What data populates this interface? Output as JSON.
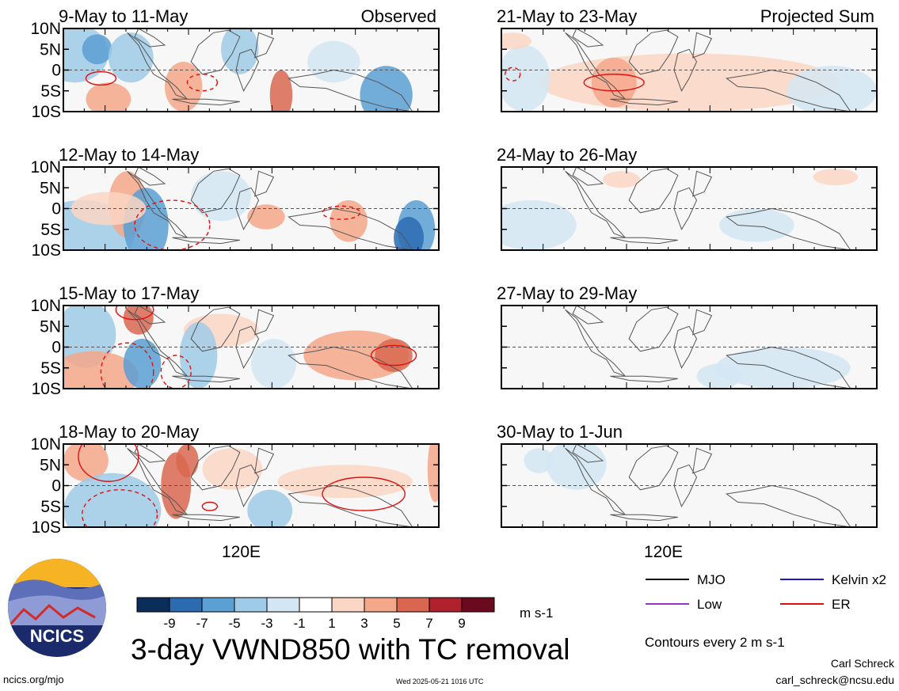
{
  "chart_data": {
    "type": "heatmap",
    "title": "3-day VWND850 with TC removal",
    "variable": "VWND850",
    "units": "m s-1",
    "colorbar": {
      "ticks": [
        "-9",
        "-7",
        "-5",
        "-3",
        "-1",
        "1",
        "3",
        "5",
        "7",
        "9"
      ],
      "colors": [
        "#0b2d5a",
        "#2c6bb0",
        "#5b9fd3",
        "#9fcbe8",
        "#d4e6f3",
        "#ffffff",
        "#fbd6c4",
        "#f4a789",
        "#d96750",
        "#b0202d",
        "#6b0a1f"
      ]
    },
    "ylabels": [
      "10N",
      "5N",
      "0",
      "5S",
      "10S"
    ],
    "ylim": [
      -10,
      10
    ],
    "xlabel": "120E",
    "contour_note": "Contours every 2 m s-1",
    "legend": [
      {
        "label": "MJO",
        "color": "#000000"
      },
      {
        "label": "Kelvin x2",
        "color": "#1a1acc"
      },
      {
        "label": "Low",
        "color": "#9933cc"
      },
      {
        "label": "ER",
        "color": "#e01010"
      }
    ],
    "columns": [
      {
        "header": "Observed",
        "panels": [
          "9-May to 11-May",
          "12-May to 14-May",
          "15-May to 17-May",
          "18-May to 20-May"
        ]
      },
      {
        "header": "Projected Sum",
        "panels": [
          "21-May to 23-May",
          "24-May to 26-May",
          "27-May to 29-May",
          "30-May to 1-Jun"
        ]
      }
    ]
  },
  "logo_text": "NCICS",
  "footer": {
    "url": "ncics.org/mjo",
    "timestamp": "Wed 2025-05-21 1016 UTC",
    "author": "Carl Schreck",
    "email": "carl_schreck@ncsu.edu"
  }
}
